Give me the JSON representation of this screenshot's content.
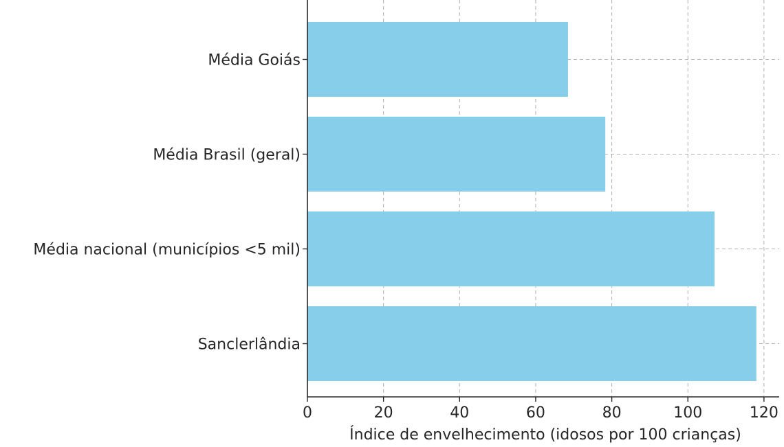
{
  "chart_data": {
    "type": "bar",
    "orientation": "horizontal",
    "title": "",
    "xlabel": "Índice de envelhecimento (idosos por 100 crianças)",
    "ylabel": "",
    "categories": [
      "Sanclerlândia",
      "Média nacional (municípios <5 mil)",
      "Média Goiás",
      "Média Brasil (geral)"
    ],
    "values": [
      118,
      107,
      68.5,
      78.3
    ],
    "display_order_top_to_bottom": [
      "Média Goiás",
      "Média Brasil (geral)",
      "Média nacional (municípios <5 mil)",
      "Sanclerlândia"
    ],
    "xlim": [
      0,
      124
    ],
    "xticks": [
      0,
      20,
      40,
      60,
      80,
      100,
      120
    ],
    "xtick_labels": [
      "0",
      "20",
      "40",
      "60",
      "80",
      "100",
      "120"
    ],
    "grid": true,
    "legend": "none",
    "bar_color": "#87ceeb"
  }
}
